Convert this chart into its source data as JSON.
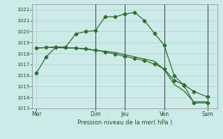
{
  "background_color": "#cceae8",
  "grid_color": "#aacfc8",
  "line_color": "#2d6e2d",
  "xlabel": "Pression niveau de la mer( hPa )",
  "ylim": [
    1013,
    1022.5
  ],
  "yticks": [
    1013,
    1014,
    1015,
    1016,
    1017,
    1018,
    1019,
    1020,
    1021,
    1022
  ],
  "x_day_labels": [
    "Mer",
    "Dim",
    "Jeu",
    "Ven",
    "Sam"
  ],
  "x_day_positions": [
    0,
    3.0,
    4.5,
    6.5,
    8.7
  ],
  "xlim": [
    -0.2,
    9.2
  ],
  "vline_positions": [
    3.0,
    4.5,
    6.5,
    8.7
  ],
  "series1_x": [
    0,
    0.5,
    1.0,
    1.5,
    2.0,
    2.5,
    3.0,
    3.5,
    4.0,
    4.5,
    5.0,
    5.5,
    6.0,
    6.5,
    7.0,
    7.5,
    8.0,
    8.7
  ],
  "series1_y": [
    1016.2,
    1017.7,
    1018.6,
    1018.6,
    1019.8,
    1020.0,
    1020.1,
    1021.35,
    1021.35,
    1021.6,
    1021.75,
    1021.0,
    1019.85,
    1018.75,
    1016.0,
    1015.1,
    1013.5,
    1013.5
  ],
  "series2_x": [
    0,
    0.5,
    1.0,
    1.5,
    2.0,
    2.5,
    3.0,
    3.5,
    4.0,
    4.5,
    5.0,
    5.5,
    6.0,
    6.5,
    7.0,
    7.5,
    8.0,
    8.7
  ],
  "series2_y": [
    1018.5,
    1018.55,
    1018.55,
    1018.5,
    1018.5,
    1018.4,
    1018.3,
    1018.2,
    1018.1,
    1017.9,
    1017.7,
    1017.5,
    1017.3,
    1016.55,
    1015.2,
    1014.6,
    1013.6,
    1013.6
  ],
  "series3_x": [
    0,
    0.5,
    1.0,
    1.5,
    2.0,
    2.5,
    3.0,
    3.5,
    4.0,
    4.5,
    5.0,
    5.5,
    6.0,
    6.5,
    7.0,
    7.5,
    8.0,
    8.7
  ],
  "series3_y": [
    1018.5,
    1018.55,
    1018.6,
    1018.55,
    1018.5,
    1018.45,
    1018.3,
    1018.15,
    1017.95,
    1017.75,
    1017.55,
    1017.35,
    1017.05,
    1016.6,
    1015.55,
    1015.15,
    1014.55,
    1014.05
  ]
}
